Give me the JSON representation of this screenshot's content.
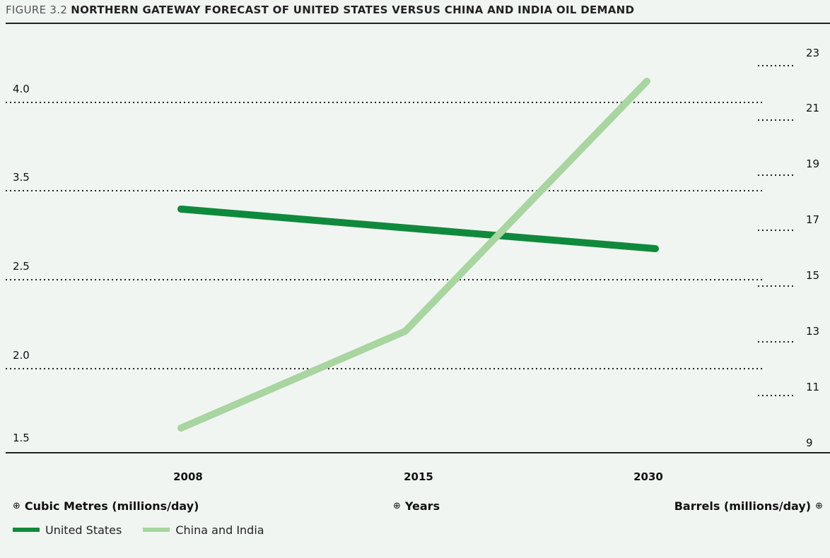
{
  "header": {
    "figure_number": "FIGURE 3.2",
    "title": "NORTHERN GATEWAY FORECAST OF UNITED STATES VERSUS CHINA AND INDIA OIL DEMAND"
  },
  "colors": {
    "background": "#f1f5f2",
    "united_states": "#0f8a3c",
    "china_india": "#a8d5a0",
    "axis": "#222222"
  },
  "chart_data": {
    "type": "line",
    "title": "NORTHERN GATEWAY FORECAST OF UNITED STATES VERSUS CHINA AND INDIA OIL DEMAND",
    "categories": [
      "2008",
      "2015",
      "2030"
    ],
    "series": [
      {
        "name": "United States",
        "values": [
          3.3,
          3.1,
          2.9
        ],
        "color": "#0f8a3c"
      },
      {
        "name": "China and India",
        "values": [
          1.6,
          2.3,
          4.1
        ],
        "color": "#a8d5a0"
      }
    ],
    "y_left": {
      "label": "Cubic Metres (millions/day)",
      "ticks": [
        "1.5",
        "2.0",
        "2.5",
        "3.5",
        "4.0"
      ]
    },
    "y_right": {
      "label": "Barrels (millions/day)",
      "ticks": [
        "9",
        "11",
        "13",
        "15",
        "17",
        "19",
        "21",
        "23"
      ]
    },
    "x_label": "Years",
    "grid": true,
    "legend": "bottom-left"
  },
  "legend": {
    "left_axis_label": "Cubic Metres (millions/day)",
    "x_axis_label": "Years",
    "right_axis_label": "Barrels (millions/day)",
    "up_icon": "⊕",
    "right_icon": "⊕",
    "us_label": "United States",
    "ci_label": "China and India"
  }
}
